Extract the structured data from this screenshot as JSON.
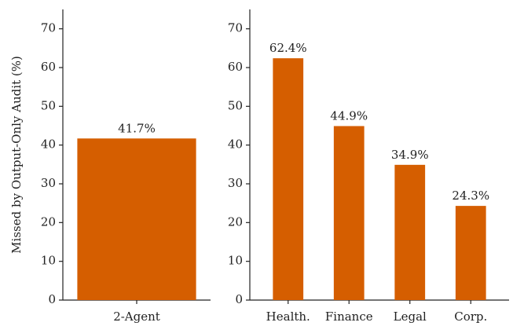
{
  "chart_data": [
    {
      "type": "bar",
      "y_label": "Missed by Output-Only Audit (%)",
      "categories": [
        "2-Agent"
      ],
      "values": [
        41.7
      ],
      "value_labels": [
        "41.7%"
      ],
      "color": "#d55e00",
      "ylim": [
        0,
        75
      ],
      "yticks": [
        0,
        10,
        20,
        30,
        40,
        50,
        60,
        70
      ]
    },
    {
      "type": "bar",
      "categories": [
        "Health.",
        "Finance",
        "Legal",
        "Corp."
      ],
      "values": [
        62.4,
        44.9,
        34.9,
        24.3
      ],
      "value_labels": [
        "62.4%",
        "44.9%",
        "34.9%",
        "24.3%"
      ],
      "color": "#d55e00",
      "ylim": [
        0,
        75
      ],
      "yticks": [
        0,
        10,
        20,
        30,
        40,
        50,
        60,
        70
      ]
    }
  ]
}
